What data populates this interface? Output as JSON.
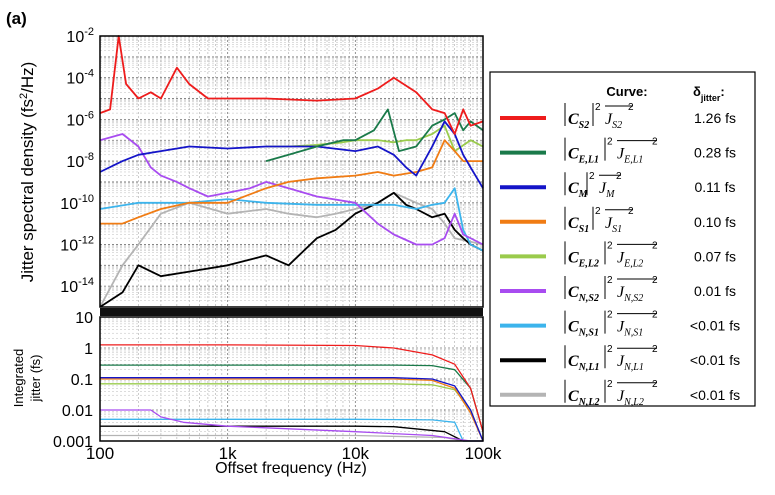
{
  "figure_label": "(a)",
  "chart_data": [
    {
      "type": "line",
      "panel": "spectral density (top)",
      "ylabel": "Jitter spectral density (fs²/Hz)",
      "xlabel": "",
      "xscale": "log",
      "yscale": "log",
      "xlim": [
        100,
        100000
      ],
      "ylim": [
        1e-15,
        0.01
      ],
      "x_ticks": [
        "100",
        "1k",
        "10k",
        "100k"
      ],
      "y_ticks": [
        {
          "value": 0.01,
          "base": "10",
          "exp": "-2"
        },
        {
          "value": 0.0001,
          "base": "10",
          "exp": "-4"
        },
        {
          "value": 1e-06,
          "base": "10",
          "exp": "-6"
        },
        {
          "value": 1e-08,
          "base": "10",
          "exp": "-8"
        },
        {
          "value": 1e-10,
          "base": "10",
          "exp": "-10"
        },
        {
          "value": 1e-12,
          "base": "10",
          "exp": "-12"
        },
        {
          "value": 1e-14,
          "base": "10",
          "exp": "-14"
        }
      ],
      "grid": true,
      "series": [
        {
          "key": "CS2",
          "color": "#ee1c1c",
          "x": [
            100,
            120,
            140,
            160,
            200,
            250,
            300,
            400,
            500,
            700,
            1000,
            2000,
            5000,
            10000,
            15000,
            20000,
            30000,
            40000,
            50000,
            60000,
            70000,
            80000,
            100000
          ],
          "y": [
            2e-06,
            3e-06,
            0.01,
            5e-05,
            1e-05,
            2e-05,
            1e-05,
            0.0003,
            5e-05,
            1e-05,
            1e-05,
            1e-05,
            8e-06,
            1e-05,
            3e-05,
            0.0001,
            2e-05,
            3e-06,
            2e-06,
            2e-07,
            3e-06,
            5e-07,
            8e-07
          ]
        },
        {
          "key": "CEL1",
          "color": "#1a7a4a",
          "x": [
            2000,
            3000,
            5000,
            8000,
            10000,
            14000,
            18000,
            22000,
            30000,
            40000,
            50000,
            60000,
            70000,
            80000,
            100000
          ],
          "y": [
            1e-08,
            2e-08,
            5e-08,
            1e-07,
            1e-07,
            3e-07,
            3e-06,
            3e-08,
            5e-08,
            5e-07,
            1e-06,
            2e-06,
            3e-07,
            8e-07,
            3e-07
          ]
        },
        {
          "key": "CM",
          "color": "#1414c8",
          "x": [
            100,
            150,
            200,
            300,
            500,
            1000,
            2000,
            5000,
            10000,
            15000,
            20000,
            25000,
            30000,
            40000,
            50000,
            60000,
            70000,
            80000,
            100000
          ],
          "y": [
            3e-09,
            1e-08,
            2e-08,
            3e-08,
            5e-08,
            4e-08,
            5e-08,
            5e-08,
            3e-08,
            5e-08,
            2e-08,
            5e-09,
            2e-09,
            5e-08,
            8e-07,
            2e-07,
            2e-08,
            5e-09,
            5e-10
          ]
        },
        {
          "key": "CS1",
          "color": "#f07c14",
          "x": [
            100,
            150,
            200,
            300,
            500,
            1000,
            2000,
            3000,
            5000,
            10000,
            15000,
            20000,
            30000,
            40000,
            50000,
            60000,
            70000,
            100000
          ],
          "y": [
            1e-11,
            1e-11,
            2e-11,
            5e-11,
            1e-10,
            1e-10,
            5e-10,
            1e-09,
            1.5e-09,
            2e-09,
            3e-09,
            2e-09,
            3e-09,
            5e-09,
            1e-07,
            3e-08,
            1e-08,
            1e-08
          ]
        },
        {
          "key": "CEL2",
          "color": "#9acb4c",
          "x": [
            2000,
            3000,
            5000,
            8000,
            10000,
            15000,
            20000,
            25000,
            30000,
            40000,
            50000,
            60000,
            80000,
            100000
          ],
          "y": [
            5e-08,
            5e-08,
            6e-08,
            8e-08,
            1e-07,
            1e-07,
            8e-08,
            1e-07,
            1e-07,
            2e-07,
            5e-07,
            3e-08,
            1e-07,
            5e-08
          ]
        },
        {
          "key": "CNS2",
          "color": "#a84cf0",
          "x": [
            100,
            150,
            200,
            250,
            300,
            400,
            500,
            700,
            1000,
            1500,
            2000,
            3000,
            5000,
            10000,
            15000,
            20000,
            30000,
            40000,
            50000,
            60000,
            70000,
            100000
          ],
          "y": [
            1e-07,
            2e-07,
            5e-08,
            5e-09,
            2e-09,
            1e-09,
            5e-10,
            2e-10,
            3e-10,
            5e-10,
            1e-09,
            5e-10,
            2e-10,
            1e-10,
            1e-11,
            3e-12,
            1e-12,
            1e-12,
            2e-12,
            3e-11,
            3e-12,
            1e-12
          ]
        },
        {
          "key": "CNS1",
          "color": "#3cb4ec",
          "x": [
            100,
            200,
            300,
            500,
            1000,
            2000,
            5000,
            10000,
            20000,
            30000,
            40000,
            50000,
            60000,
            70000,
            80000,
            100000
          ],
          "y": [
            5e-11,
            1e-10,
            1e-10,
            1e-10,
            1.5e-10,
            1e-10,
            8e-11,
            8e-11,
            8e-11,
            5e-11,
            8e-11,
            1e-10,
            5e-10,
            5e-12,
            1e-12,
            5e-13
          ]
        },
        {
          "key": "CNL1",
          "color": "#000000",
          "x": [
            100,
            150,
            200,
            300,
            500,
            1000,
            2000,
            3000,
            5000,
            7000,
            10000,
            15000,
            20000,
            25000,
            30000,
            40000,
            50000,
            60000,
            70000,
            80000,
            100000
          ],
          "y": [
            1e-15,
            5e-15,
            1e-13,
            3e-14,
            5e-14,
            1e-13,
            3e-13,
            1e-13,
            2e-12,
            5e-12,
            3e-11,
            1e-10,
            3e-10,
            8e-11,
            5e-11,
            2e-11,
            3e-11,
            5e-12,
            2e-12,
            1e-12,
            5e-13
          ]
        },
        {
          "key": "CNL2",
          "color": "#b4b4b4",
          "x": [
            100,
            150,
            200,
            300,
            500,
            1000,
            2000,
            3000,
            5000,
            7000,
            10000,
            15000,
            20000,
            30000,
            40000,
            50000,
            60000,
            100000
          ],
          "y": [
            1e-15,
            1e-13,
            1e-12,
            3e-11,
            1e-10,
            3e-11,
            5e-11,
            3e-11,
            2e-11,
            3e-11,
            5e-11,
            1e-10,
            3e-10,
            1e-10,
            5e-11,
            1e-11,
            2e-12,
            1e-12
          ]
        }
      ]
    },
    {
      "type": "line",
      "panel": "integrated jitter (bottom)",
      "ylabel": "Integrated jitter (fs)",
      "xlabel": "Offset frequency (Hz)",
      "xscale": "log",
      "yscale": "log",
      "xlim": [
        100,
        100000
      ],
      "ylim": [
        0.001,
        10
      ],
      "x_ticks": [
        "100",
        "1k",
        "10k",
        "100k"
      ],
      "y_ticks": [
        "10",
        "1",
        "0.1",
        "0.01",
        "0.001"
      ],
      "grid": true,
      "series": [
        {
          "key": "CS2",
          "x": [
            100,
            1000,
            10000,
            20000,
            40000,
            60000,
            80000,
            100000
          ],
          "y": [
            1.26,
            1.26,
            1.2,
            1.0,
            0.6,
            0.3,
            0.05,
            0.002
          ]
        },
        {
          "key": "CEL1",
          "x": [
            100,
            20000,
            40000,
            60000,
            80000,
            100000
          ],
          "y": [
            0.28,
            0.28,
            0.27,
            0.2,
            0.05,
            0.002
          ]
        },
        {
          "key": "CM",
          "x": [
            100,
            20000,
            40000,
            60000,
            80000,
            100000
          ],
          "y": [
            0.11,
            0.11,
            0.1,
            0.06,
            0.01,
            0.001
          ]
        },
        {
          "key": "CS1",
          "x": [
            100,
            20000,
            40000,
            60000,
            80000,
            100000
          ],
          "y": [
            0.1,
            0.1,
            0.09,
            0.05,
            0.008,
            0.001
          ]
        },
        {
          "key": "CEL2",
          "x": [
            100,
            20000,
            40000,
            60000,
            80000,
            100000
          ],
          "y": [
            0.07,
            0.07,
            0.065,
            0.045,
            0.01,
            0.001
          ]
        },
        {
          "key": "CNS2",
          "x": [
            100,
            250,
            300,
            450,
            1000,
            10000,
            40000,
            80000,
            100000
          ],
          "y": [
            0.01,
            0.01,
            0.006,
            0.004,
            0.003,
            0.002,
            0.0015,
            0.001,
            0.001
          ]
        },
        {
          "key": "CNS1",
          "x": [
            100,
            10000,
            40000,
            60000,
            70000,
            100000
          ],
          "y": [
            0.005,
            0.005,
            0.0048,
            0.004,
            0.001,
            0.001
          ]
        },
        {
          "key": "CNL1",
          "x": [
            100,
            10000,
            20000,
            50000,
            70000,
            100000
          ],
          "y": [
            0.003,
            0.003,
            0.0029,
            0.002,
            0.001,
            0.001
          ]
        },
        {
          "key": "CNL2",
          "x": [
            100,
            10000,
            50000,
            70000,
            100000
          ],
          "y": [
            0.0015,
            0.0015,
            0.0013,
            0.001,
            0.001
          ]
        }
      ]
    }
  ],
  "legend": {
    "curve_header": "Curve:",
    "jitter_header_main": "δ",
    "jitter_header_sub": "jitter",
    "jitter_header_colon": ":",
    "entries": [
      {
        "key": "CS2",
        "C": "C",
        "c_sub": "S2",
        "J": "J",
        "j_sub": "S2",
        "value": "1.26 fs"
      },
      {
        "key": "CEL1",
        "C": "C",
        "c_sub": "E,L1",
        "J": "J",
        "j_sub": "E,L1",
        "value": "0.28 fs"
      },
      {
        "key": "CM",
        "C": "C",
        "c_sub": "M",
        "J": "J",
        "j_sub": "M",
        "value": "0.11 fs"
      },
      {
        "key": "CS1",
        "C": "C",
        "c_sub": "S1",
        "J": "J",
        "j_sub": "S1",
        "value": "0.10 fs"
      },
      {
        "key": "CEL2",
        "C": "C",
        "c_sub": "E,L2",
        "J": "J",
        "j_sub": "E,L2",
        "value": "0.07 fs"
      },
      {
        "key": "CNS2",
        "C": "C",
        "c_sub": "N,S2",
        "J": "J",
        "j_sub": "N,S2",
        "value": "0.01 fs"
      },
      {
        "key": "CNS1",
        "C": "C",
        "c_sub": "N,S1",
        "J": "J",
        "j_sub": "N,S1",
        "value": "<0.01 fs"
      },
      {
        "key": "CNL1",
        "C": "C",
        "c_sub": "N,L1",
        "J": "J",
        "j_sub": "N,L1",
        "value": "<0.01 fs"
      },
      {
        "key": "CNL2",
        "C": "C",
        "c_sub": "N,L2",
        "J": "J",
        "j_sub": "N,L2",
        "value": "<0.01 fs"
      }
    ]
  }
}
